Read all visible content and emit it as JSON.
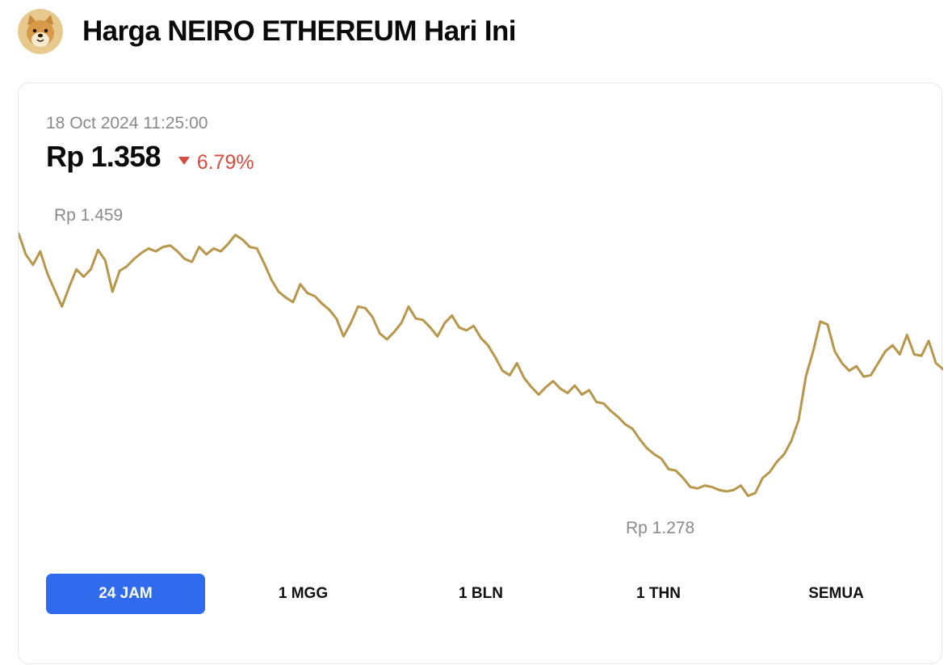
{
  "header": {
    "title": "Harga NEIRO ETHEREUM Hari Ini",
    "logo_icon": "shiba-dog-logo-icon"
  },
  "price_card": {
    "timestamp": "18 Oct 2024 11:25:00",
    "price": "Rp 1.358",
    "change": "6.79%",
    "change_direction": "down",
    "change_color": "#d84b3f"
  },
  "chart_data": {
    "type": "line",
    "line_color": "#b8964a",
    "high_label": "Rp 1.459",
    "low_label": "Rp 1.278",
    "ylim": [
      1278,
      1459
    ],
    "grid": false,
    "series": [
      {
        "values": [
          1459,
          1445,
          1438,
          1447,
          1432,
          1421,
          1410,
          1423,
          1435,
          1430,
          1435,
          1448,
          1441,
          1420,
          1434,
          1437,
          1442,
          1446,
          1449,
          1447,
          1450,
          1451,
          1447,
          1442,
          1440,
          1450,
          1445,
          1449,
          1447,
          1452,
          1458,
          1455,
          1450,
          1449,
          1439,
          1428,
          1420,
          1416,
          1413,
          1425,
          1419,
          1417,
          1412,
          1408,
          1402,
          1390,
          1399,
          1410,
          1409,
          1403,
          1392,
          1388,
          1393,
          1399,
          1410,
          1402,
          1401,
          1396,
          1390,
          1399,
          1404,
          1396,
          1394,
          1397,
          1389,
          1384,
          1376,
          1367,
          1364,
          1372,
          1362,
          1356,
          1351,
          1356,
          1360,
          1355,
          1352,
          1357,
          1351,
          1354,
          1346,
          1345,
          1340,
          1336,
          1331,
          1328,
          1321,
          1315,
          1311,
          1308,
          1301,
          1300,
          1295,
          1289,
          1288,
          1290,
          1289,
          1287,
          1286,
          1287,
          1290,
          1283,
          1285,
          1295,
          1299,
          1306,
          1311,
          1320,
          1334,
          1363,
          1380,
          1400,
          1398,
          1380,
          1372,
          1367,
          1370,
          1363,
          1364,
          1372,
          1380,
          1384,
          1378,
          1391,
          1378,
          1377,
          1387,
          1372,
          1368
        ]
      }
    ]
  },
  "ranges": {
    "selected": "24 JAM",
    "items": [
      "24 JAM",
      "1 MGG",
      "1 BLN",
      "1 THN",
      "SEMUA"
    ]
  }
}
